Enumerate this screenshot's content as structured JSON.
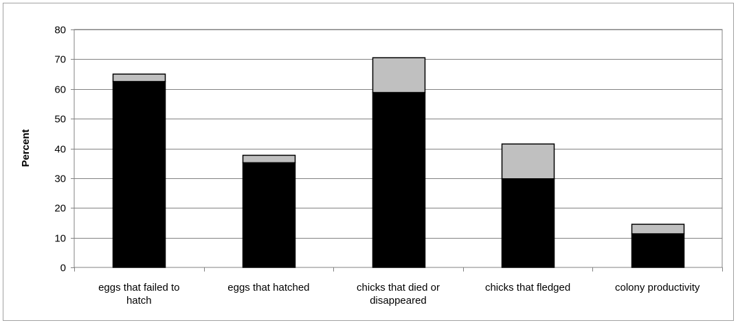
{
  "chart_data": {
    "type": "bar",
    "stacked": true,
    "title": "",
    "xlabel": "",
    "ylabel": "Percent",
    "ylim": [
      0,
      80
    ],
    "yticks": [
      0,
      10,
      20,
      30,
      40,
      50,
      60,
      70,
      80
    ],
    "grid": true,
    "legend": "none",
    "categories": [
      "eggs that failed to hatch",
      "eggs that hatched",
      "chicks that died or disappeared",
      "chicks that fledged",
      "colony productivity"
    ],
    "series": [
      {
        "values": [
          62.5,
          35.2,
          58.8,
          29.8,
          11.3
        ],
        "color": "#000000"
      },
      {
        "values": [
          2.5,
          2.5,
          11.7,
          11.7,
          3.2
        ],
        "color": "#c0c0c0"
      }
    ]
  }
}
